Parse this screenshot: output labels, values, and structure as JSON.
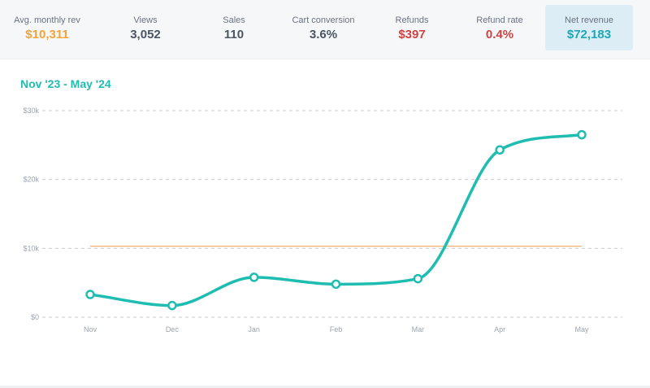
{
  "stats": [
    {
      "label": "Avg. monthly rev",
      "value": "$10,311",
      "color": "#f5a337"
    },
    {
      "label": "Views",
      "value": "3,052",
      "color": "#4b5563"
    },
    {
      "label": "Sales",
      "value": "110",
      "color": "#4b5563"
    },
    {
      "label": "Cart conversion",
      "value": "3.6%",
      "color": "#4b5563"
    },
    {
      "label": "Refunds",
      "value": "$397",
      "color": "#d14343"
    },
    {
      "label": "Refund rate",
      "value": "0.4%",
      "color": "#d14343"
    },
    {
      "label": "Net revenue",
      "value": "$72,183",
      "color": "#1ba9b5",
      "active": true
    }
  ],
  "chart_data": {
    "type": "line",
    "title": "Nov '23 - May '24",
    "categories": [
      "Nov",
      "Dec",
      "Jan",
      "Feb",
      "Mar",
      "Apr",
      "May"
    ],
    "series": [
      {
        "values": [
          3300,
          1700,
          5800,
          4800,
          5600,
          24300,
          26500
        ],
        "color": "#1fbdb1"
      }
    ],
    "reference_line": {
      "value": 10311,
      "color": "#f5b87a"
    },
    "ylim": [
      0,
      30000
    ],
    "yticks": [
      0,
      10000,
      20000,
      30000
    ],
    "ytick_labels": [
      "$0",
      "$10k",
      "$20k",
      "$30k"
    ],
    "grid": true
  }
}
